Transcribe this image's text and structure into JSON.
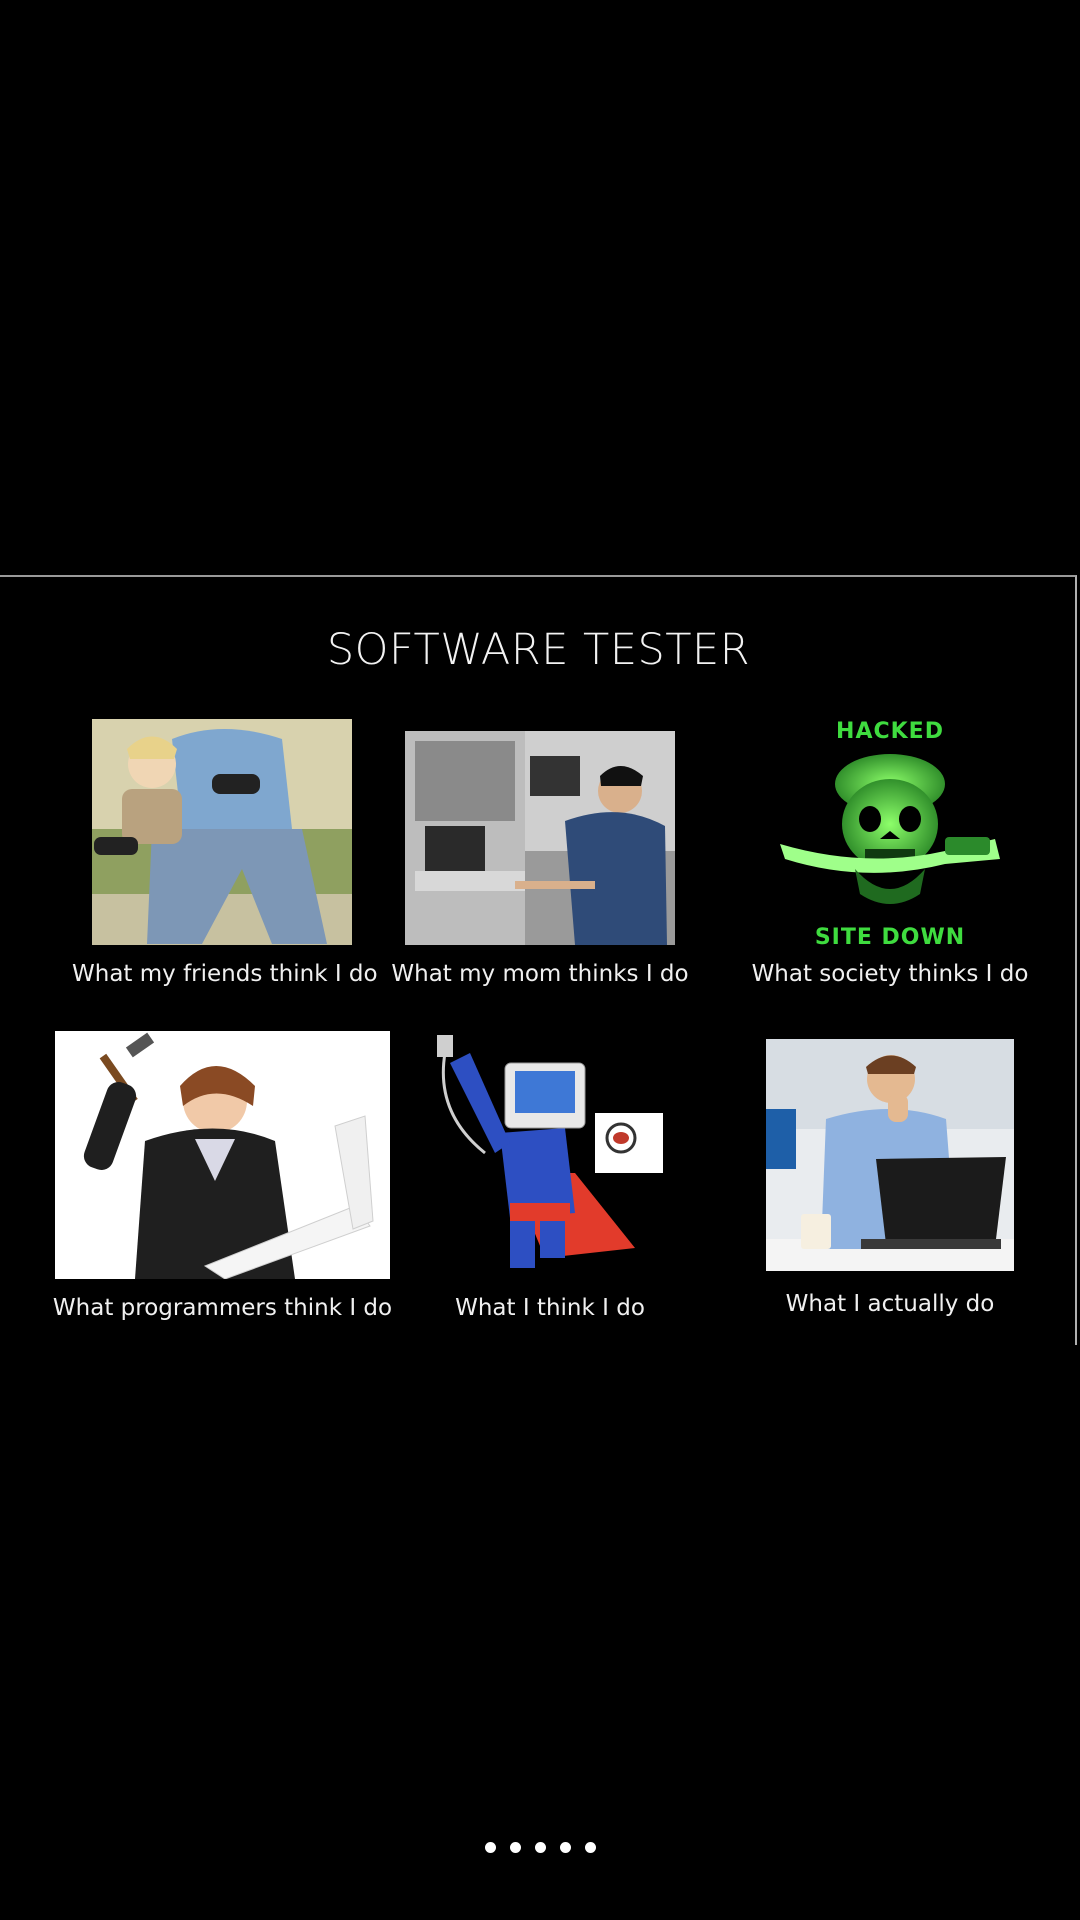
{
  "meme": {
    "title": "SOFTWARE TESTER",
    "panels": [
      {
        "caption": "What my friends think I do",
        "picture": "man and child playing video games with controllers"
      },
      {
        "caption": "What my mom thinks I do",
        "picture": "engineer at computer workstations in lab"
      },
      {
        "caption": "What society thinks I do",
        "picture": "green skull pirate with dagger",
        "overlay_top": "HACKED",
        "overlay_bottom": "SITE DOWN"
      },
      {
        "caption": "What programmers think I do",
        "picture": "woman smashing laptop with hammer"
      },
      {
        "caption": "What I think I do",
        "picture": "computer-headed superhero flying with bug"
      },
      {
        "caption": "What I actually do",
        "picture": "man thinking at laptop"
      }
    ]
  },
  "pager": {
    "count": 5,
    "active_index": 0
  },
  "colors": {
    "background": "#000000",
    "hack_green": "#3fdc3f",
    "caption": "#f0f0f0"
  }
}
